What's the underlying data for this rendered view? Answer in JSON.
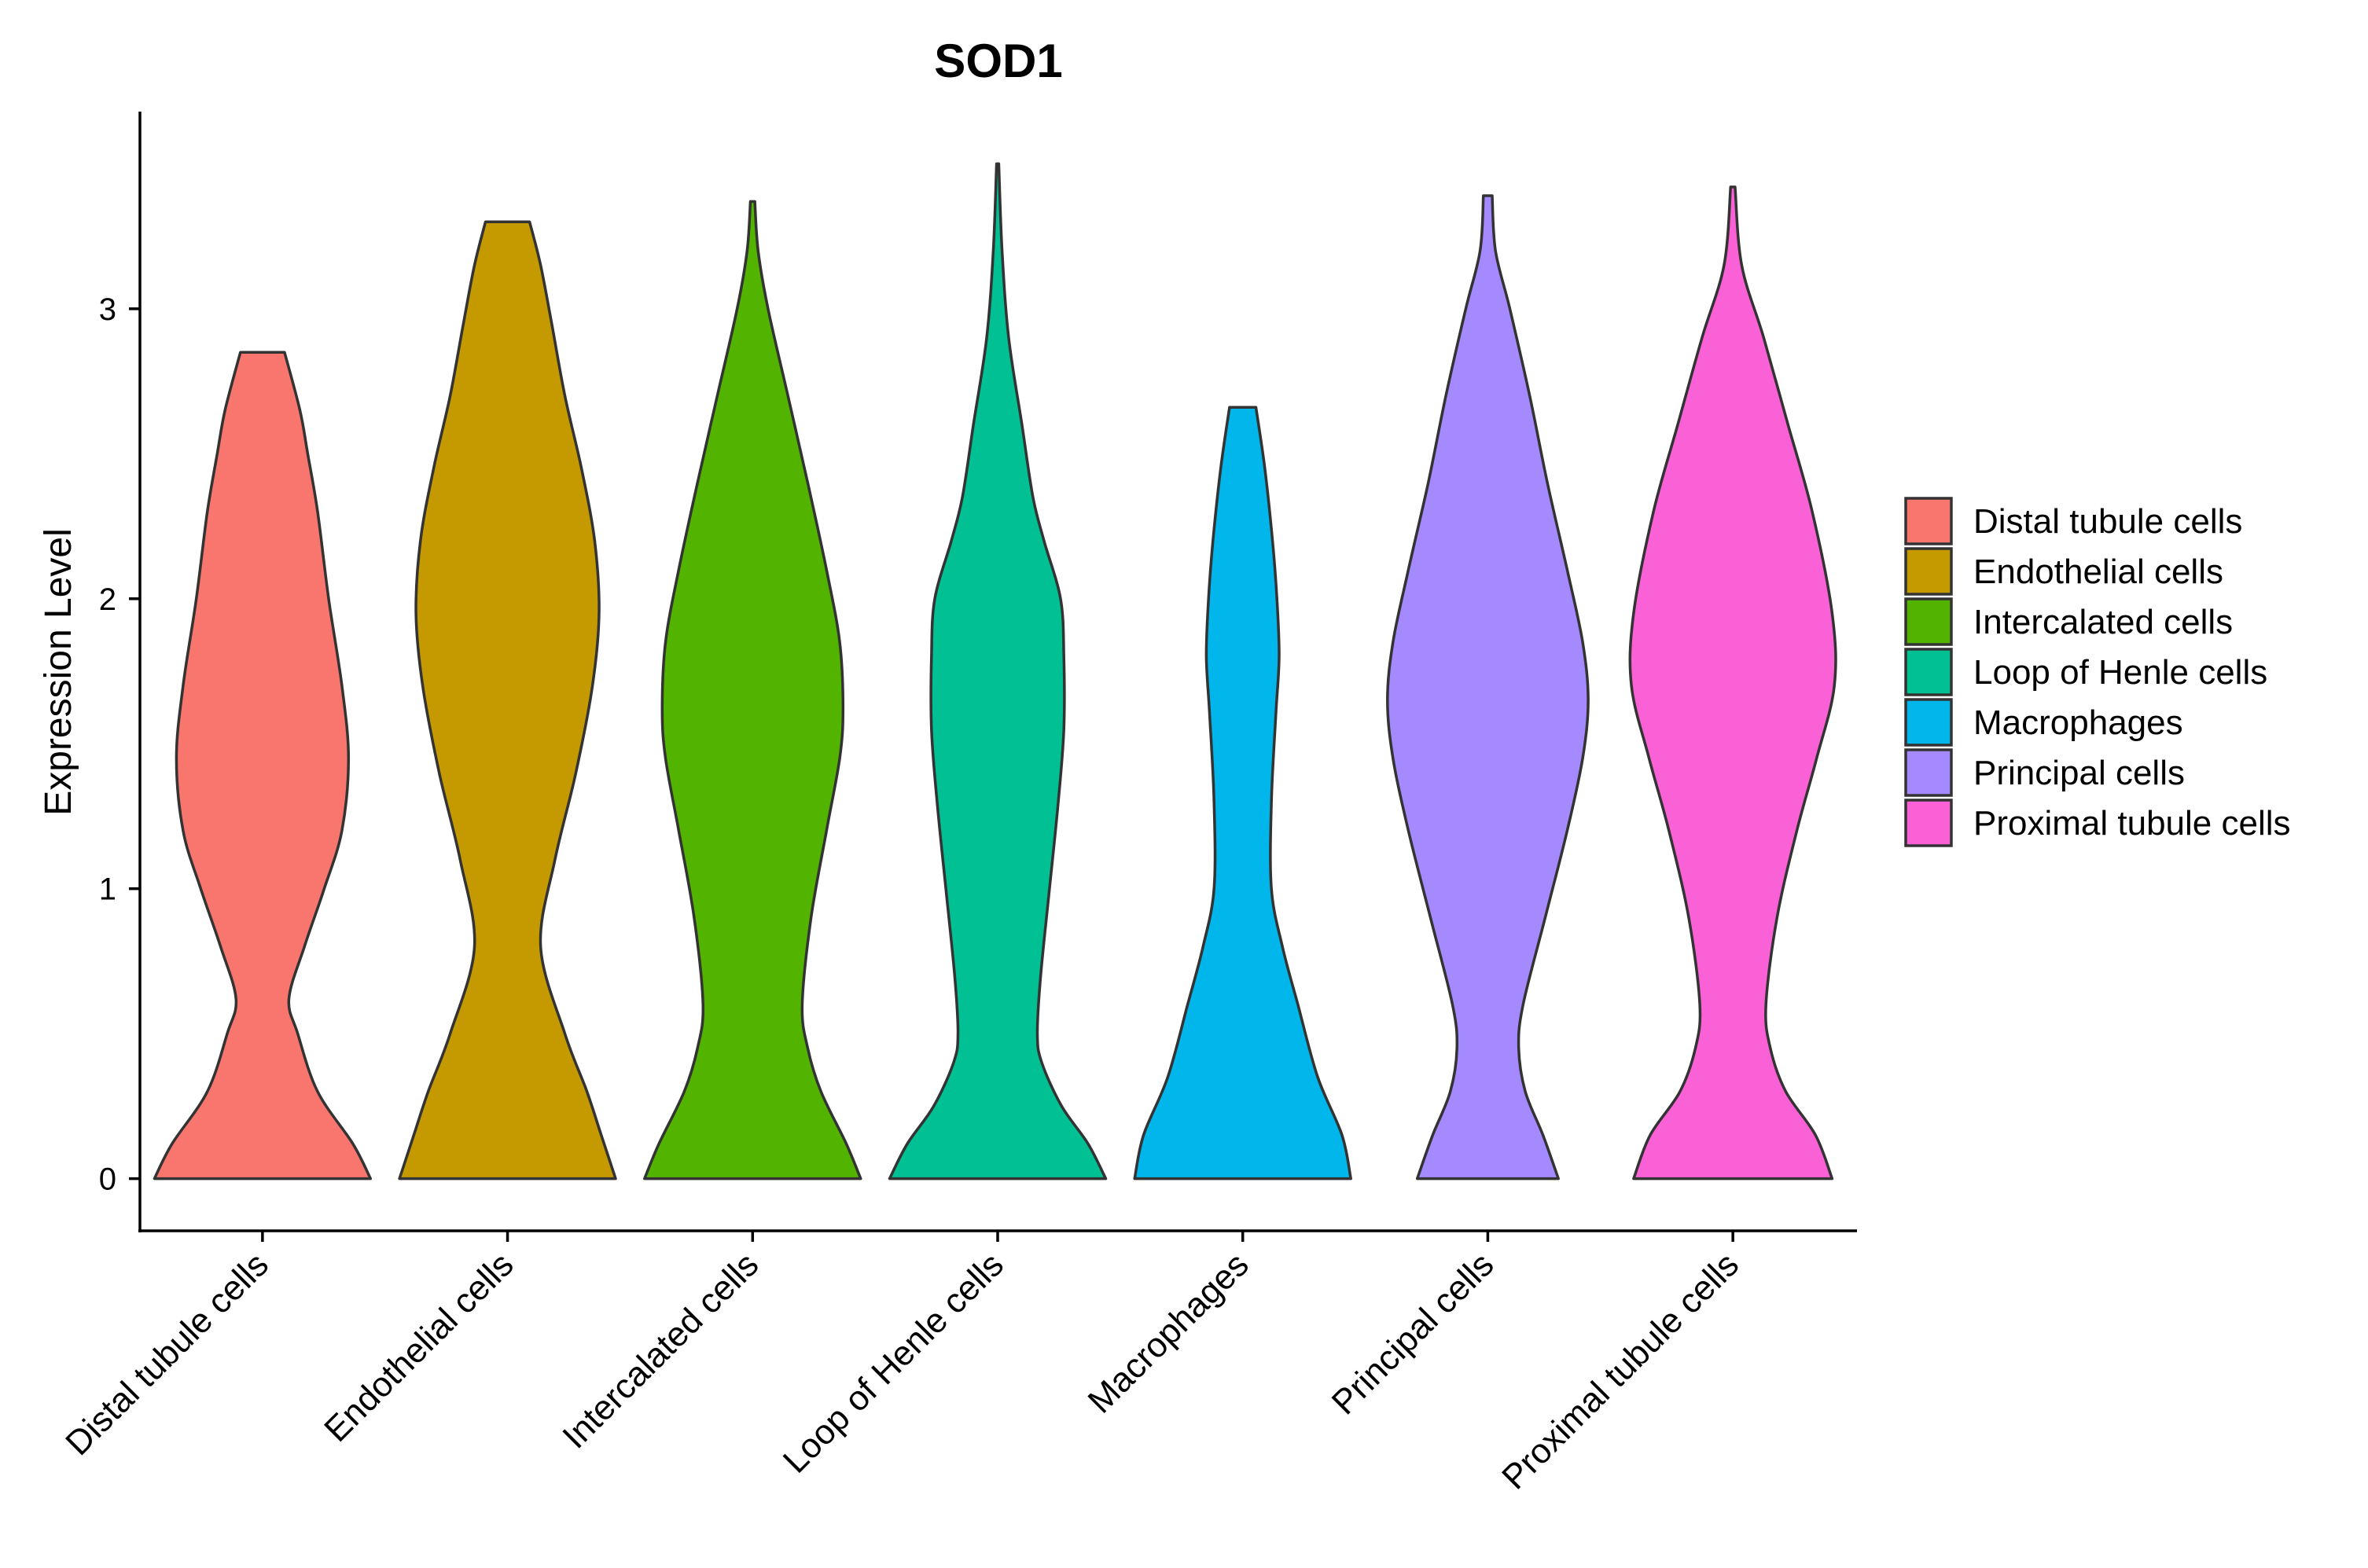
{
  "chart_data": {
    "type": "violin",
    "title": "SOD1",
    "xlabel": "",
    "ylabel": "Expression Level",
    "ylim": [
      -0.18,
      3.68
    ],
    "yticks": [
      0,
      1,
      2,
      3
    ],
    "grid": false,
    "legend_position": "right",
    "categories": [
      "Distal tubule cells",
      "Endothelial cells",
      "Intercalated cells",
      "Loop of Henle cells",
      "Macrophages",
      "Principal cells",
      "Proximal tubule cells"
    ],
    "series": [
      {
        "name": "Distal tubule cells",
        "color": "#F8766D",
        "max": 2.85,
        "density_profile": [
          [
            0,
            0.98
          ],
          [
            0.12,
            0.82
          ],
          [
            0.3,
            0.5
          ],
          [
            0.5,
            0.32
          ],
          [
            0.62,
            0.24
          ],
          [
            0.8,
            0.38
          ],
          [
            1.0,
            0.56
          ],
          [
            1.2,
            0.72
          ],
          [
            1.45,
            0.78
          ],
          [
            1.7,
            0.72
          ],
          [
            2.0,
            0.6
          ],
          [
            2.3,
            0.5
          ],
          [
            2.5,
            0.41
          ],
          [
            2.65,
            0.34
          ],
          [
            2.85,
            0.2
          ]
        ]
      },
      {
        "name": "Endothelial cells",
        "color": "#C49A00",
        "max": 3.3,
        "density_profile": [
          [
            0,
            0.98
          ],
          [
            0.15,
            0.85
          ],
          [
            0.3,
            0.72
          ],
          [
            0.5,
            0.52
          ],
          [
            0.8,
            0.3
          ],
          [
            1.1,
            0.43
          ],
          [
            1.4,
            0.62
          ],
          [
            1.7,
            0.77
          ],
          [
            1.95,
            0.83
          ],
          [
            2.2,
            0.79
          ],
          [
            2.45,
            0.67
          ],
          [
            2.7,
            0.52
          ],
          [
            2.95,
            0.4
          ],
          [
            3.15,
            0.3
          ],
          [
            3.3,
            0.2
          ]
        ]
      },
      {
        "name": "Intercalated cells",
        "color": "#53B400",
        "max": 3.37,
        "density_profile": [
          [
            0,
            0.98
          ],
          [
            0.12,
            0.85
          ],
          [
            0.3,
            0.62
          ],
          [
            0.45,
            0.5
          ],
          [
            0.6,
            0.45
          ],
          [
            0.9,
            0.53
          ],
          [
            1.2,
            0.67
          ],
          [
            1.45,
            0.79
          ],
          [
            1.62,
            0.82
          ],
          [
            1.85,
            0.79
          ],
          [
            2.1,
            0.67
          ],
          [
            2.4,
            0.5
          ],
          [
            2.7,
            0.32
          ],
          [
            3.0,
            0.14
          ],
          [
            3.2,
            0.05
          ],
          [
            3.37,
            0.02
          ]
        ]
      },
      {
        "name": "Loop of Henle cells",
        "color": "#00C094",
        "max": 3.5,
        "density_profile": [
          [
            0,
            0.98
          ],
          [
            0.12,
            0.82
          ],
          [
            0.25,
            0.58
          ],
          [
            0.4,
            0.4
          ],
          [
            0.5,
            0.36
          ],
          [
            0.7,
            0.39
          ],
          [
            1.0,
            0.47
          ],
          [
            1.3,
            0.55
          ],
          [
            1.55,
            0.6
          ],
          [
            1.8,
            0.6
          ],
          [
            2.0,
            0.57
          ],
          [
            2.2,
            0.42
          ],
          [
            2.35,
            0.32
          ],
          [
            2.6,
            0.22
          ],
          [
            2.9,
            0.1
          ],
          [
            3.2,
            0.04
          ],
          [
            3.5,
            0.01
          ]
        ]
      },
      {
        "name": "Macrophages",
        "color": "#00B6EB",
        "max": 2.66,
        "density_profile": [
          [
            0,
            0.98
          ],
          [
            0.15,
            0.9
          ],
          [
            0.35,
            0.68
          ],
          [
            0.6,
            0.5
          ],
          [
            0.8,
            0.36
          ],
          [
            1.0,
            0.26
          ],
          [
            1.3,
            0.26
          ],
          [
            1.6,
            0.3
          ],
          [
            1.8,
            0.33
          ],
          [
            2.0,
            0.31
          ],
          [
            2.2,
            0.27
          ],
          [
            2.45,
            0.2
          ],
          [
            2.66,
            0.12
          ]
        ]
      },
      {
        "name": "Principal cells",
        "color": "#A58AFF",
        "max": 3.39,
        "density_profile": [
          [
            0,
            0.64
          ],
          [
            0.15,
            0.5
          ],
          [
            0.3,
            0.34
          ],
          [
            0.45,
            0.28
          ],
          [
            0.6,
            0.32
          ],
          [
            0.9,
            0.52
          ],
          [
            1.2,
            0.72
          ],
          [
            1.45,
            0.86
          ],
          [
            1.65,
            0.91
          ],
          [
            1.85,
            0.86
          ],
          [
            2.1,
            0.72
          ],
          [
            2.4,
            0.54
          ],
          [
            2.7,
            0.38
          ],
          [
            3.0,
            0.2
          ],
          [
            3.2,
            0.07
          ],
          [
            3.39,
            0.04
          ]
        ]
      },
      {
        "name": "Proximal tubule cells",
        "color": "#FB61D7",
        "max": 3.42,
        "density_profile": [
          [
            0,
            0.9
          ],
          [
            0.15,
            0.75
          ],
          [
            0.3,
            0.48
          ],
          [
            0.45,
            0.34
          ],
          [
            0.6,
            0.3
          ],
          [
            0.9,
            0.4
          ],
          [
            1.2,
            0.58
          ],
          [
            1.45,
            0.76
          ],
          [
            1.7,
            0.92
          ],
          [
            1.95,
            0.9
          ],
          [
            2.3,
            0.72
          ],
          [
            2.6,
            0.5
          ],
          [
            2.9,
            0.28
          ],
          [
            3.15,
            0.08
          ],
          [
            3.42,
            0.02
          ]
        ]
      }
    ]
  }
}
